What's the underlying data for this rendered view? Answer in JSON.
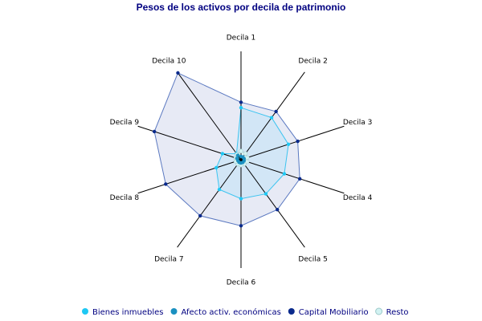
{
  "chart_data": {
    "type": "radar",
    "title": "Pesos de los activos por decila de patrimonio",
    "categories": [
      "Decila 1",
      "Decila 2",
      "Decila 3",
      "Decila 4",
      "Decila 5",
      "Decila 6",
      "Decila 7",
      "Decila 8",
      "Decila 9",
      "Decila 10"
    ],
    "range": [
      0,
      100
    ],
    "grid": false,
    "legend_position": "bottom",
    "series": [
      {
        "name": "Capital Mobiliario",
        "color": "#0a2a8c",
        "fill": "#e4e8f4",
        "stroke": "#5a78c0",
        "values": [
          53,
          55,
          55,
          57,
          57,
          61,
          64,
          73,
          84,
          99
        ]
      },
      {
        "name": "Bienes inmuebles",
        "color": "#1ec8f4",
        "fill": "#cfe6f6",
        "stroke": "#3cc4f0",
        "values": [
          48,
          48,
          46,
          42,
          39,
          36,
          34,
          24,
          18,
          7
        ]
      },
      {
        "name": "Resto",
        "color": "#d2f2f2",
        "fill": "#e6f8f8",
        "stroke": "#9cc8c8",
        "values": [
          8,
          7,
          6,
          6,
          5,
          5,
          5,
          5,
          5,
          6
        ]
      },
      {
        "name": "Afecto activ. económicas",
        "color": "#1a90c0",
        "fill": "#2a8cb0",
        "stroke": "#1a80b0",
        "values": [
          3,
          3,
          3,
          3,
          3,
          3,
          3,
          3,
          4,
          5
        ]
      }
    ],
    "legend_order": [
      "Bienes inmuebles",
      "Afecto activ. económicas",
      "Capital Mobiliario",
      "Resto"
    ]
  }
}
